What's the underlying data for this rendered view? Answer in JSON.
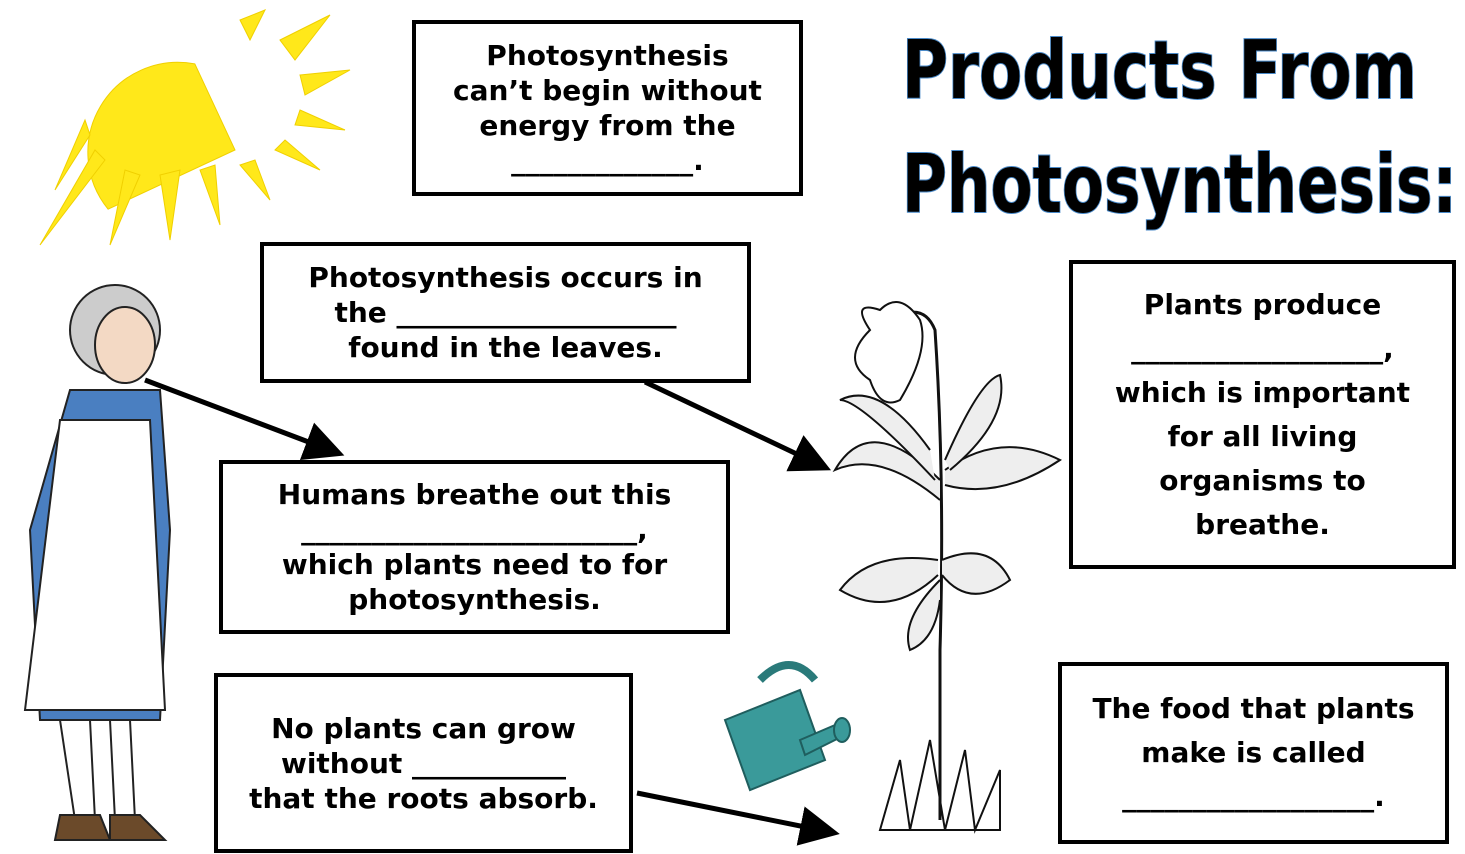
{
  "title": {
    "lines": [
      "Products From",
      "Photosynthesis:"
    ]
  },
  "boxes": [
    {
      "lines": [
        "Photosynthesis",
        "can’t begin without",
        "energy from the",
        "_____________."
      ]
    },
    {
      "lines": [
        "Photosynthesis occurs in",
        "the ____________________",
        "found in the leaves."
      ]
    },
    {
      "lines": [
        "Humans breathe out this",
        "________________________,",
        "which plants need to for",
        "photosynthesis."
      ]
    },
    {
      "lines": [
        "No plants can grow",
        "without ___________",
        "that the roots absorb."
      ]
    },
    {
      "lines": [
        "Plants produce",
        "__________________,",
        "which is important",
        "for all living",
        "organisms to",
        "breathe."
      ]
    },
    {
      "lines": [
        "The food that plants",
        "make is called",
        "__________________."
      ]
    }
  ]
}
